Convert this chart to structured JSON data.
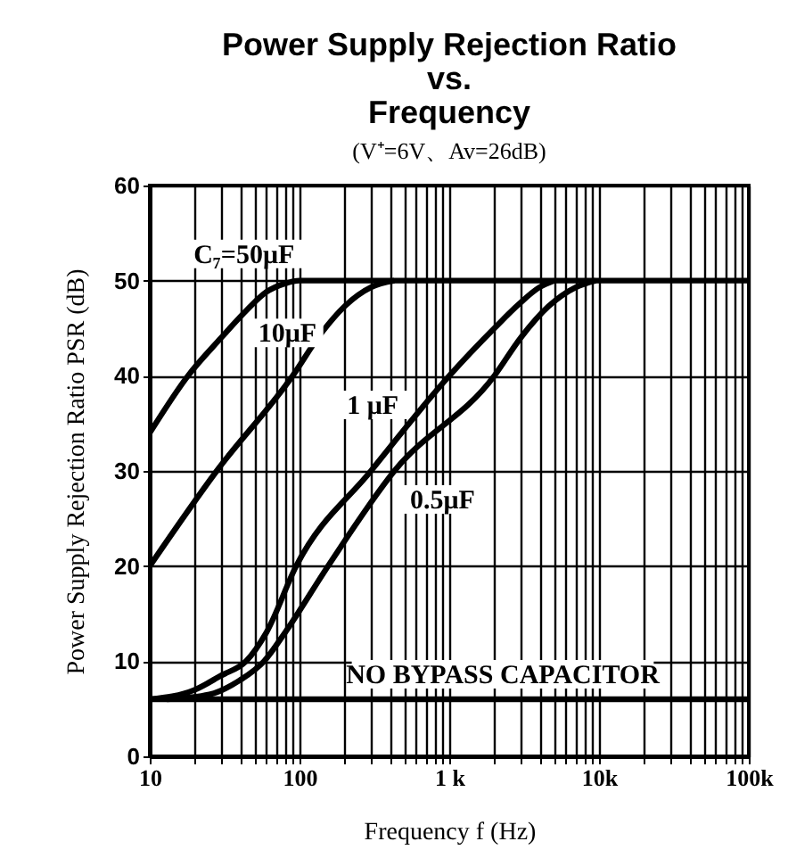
{
  "chart_data": {
    "type": "line",
    "title": "Power Supply Rejection Ratio\nvs.\nFrequency",
    "subtitle": "(V⁺=6V、Av=26dB)",
    "xlabel": "Frequency f (Hz)",
    "ylabel": "Power Supply Rejection Ratio PSR (dB)",
    "log": "x",
    "xlim": [
      10,
      100000
    ],
    "ylim": [
      0,
      60
    ],
    "xticks": [
      10,
      {
        "value": 20,
        "label": null
      },
      {
        "value": 30,
        "label": null
      },
      {
        "value": 40,
        "label": null
      },
      {
        "value": 50,
        "label": null
      },
      {
        "value": 60,
        "label": null
      },
      {
        "value": 70,
        "label": null
      },
      {
        "value": 80,
        "label": null
      },
      {
        "value": 90,
        "label": null
      },
      100,
      {
        "value": 200,
        "label": null
      },
      {
        "value": 300,
        "label": null
      },
      {
        "value": 400,
        "label": null
      },
      {
        "value": 500,
        "label": null
      },
      {
        "value": 600,
        "label": null
      },
      {
        "value": 700,
        "label": null
      },
      {
        "value": 800,
        "label": null
      },
      {
        "value": 900,
        "label": null
      },
      {
        "value": 1000,
        "label": "1 k"
      },
      {
        "value": 2000,
        "label": null
      },
      {
        "value": 3000,
        "label": null
      },
      {
        "value": 4000,
        "label": null
      },
      {
        "value": 5000,
        "label": null
      },
      {
        "value": 6000,
        "label": null
      },
      {
        "value": 7000,
        "label": null
      },
      {
        "value": 8000,
        "label": null
      },
      {
        "value": 9000,
        "label": null
      },
      {
        "value": 10000,
        "label": "10k"
      },
      {
        "value": 20000,
        "label": null
      },
      {
        "value": 30000,
        "label": null
      },
      {
        "value": 40000,
        "label": null
      },
      {
        "value": 50000,
        "label": null
      },
      {
        "value": 60000,
        "label": null
      },
      {
        "value": 70000,
        "label": null
      },
      {
        "value": 80000,
        "label": null
      },
      {
        "value": 90000,
        "label": null
      },
      {
        "value": 100000,
        "label": "100k"
      }
    ],
    "yticks": [
      0,
      10,
      20,
      30,
      40,
      50,
      60
    ],
    "grid": true,
    "marker": "none",
    "line_style": "solid",
    "series": [
      {
        "name": "C₇=50μF",
        "color": "#000000",
        "x": [
          10,
          18,
          30,
          45,
          60,
          80,
          100,
          100000
        ],
        "values": [
          34,
          40,
          44,
          47,
          48.8,
          49.7,
          50,
          50
        ]
      },
      {
        "name": "10μF",
        "color": "#000000",
        "x": [
          10,
          28,
          90,
          140,
          200,
          300,
          430
        ],
        "values": [
          20,
          30,
          40,
          44.5,
          47.3,
          49.3,
          50
        ]
      },
      {
        "name": "1 μF",
        "color": "#000000",
        "x": [
          10,
          20,
          30,
          44,
          60,
          95,
          300,
          1000,
          2000,
          2900,
          4000,
          5000
        ],
        "values": [
          6,
          7,
          8.5,
          10,
          13,
          20,
          30,
          40,
          45,
          47.5,
          49.3,
          50
        ]
      },
      {
        "name": "0.5μF",
        "color": "#000000",
        "x": [
          13,
          25,
          40,
          58,
          80,
          155,
          430,
          2000,
          3000,
          4600,
          7000,
          9500
        ],
        "values": [
          6,
          6.5,
          8,
          10,
          13,
          20,
          30,
          40,
          44,
          47.3,
          49.3,
          50
        ]
      },
      {
        "name": "NO BYPASS CAPACITOR",
        "color": "#000000",
        "x": [
          10,
          100000
        ],
        "values": [
          6,
          6
        ]
      }
    ]
  }
}
